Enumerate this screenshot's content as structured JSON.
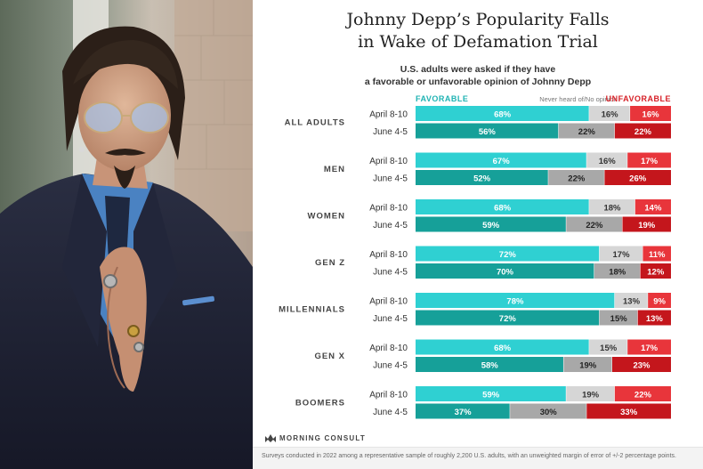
{
  "photo": {
    "alt": ""
  },
  "header": {
    "title_line1": "Johnny Depp’s Popularity Falls",
    "title_line2": "in Wake of Defamation Trial",
    "subtitle_line1": "U.S. adults were asked if they have",
    "subtitle_line2": "a favorable or unfavorable opinion of Johnny Depp"
  },
  "legend": {
    "favorable": "FAVORABLE",
    "neutral": "Never heard of/No opinion",
    "unfavorable": "UNFAVORABLE"
  },
  "colors": {
    "fav_april": "#2fd0d2",
    "fav_june": "#16a099",
    "neutral_april": "#d6d6d6",
    "neutral_june": "#a8a8a8",
    "unfav_april": "#e8353b",
    "unfav_june": "#c4161c",
    "fav_text": "#1fb3b3",
    "unfav_text": "#d62027"
  },
  "source": {
    "logo_text": "MORNING CONSULT"
  },
  "footnote": "Surveys conducted in 2022 among a representative sample of roughly 2,200 U.S. adults, with an unweighted margin of error of +/-2 percentage points.",
  "chart_data": {
    "type": "bar",
    "orientation": "horizontal",
    "stacked": "100%",
    "title": "Johnny Depp’s Popularity Falls in Wake of Defamation Trial",
    "subtitle": "U.S. adults were asked if they have a favorable or unfavorable opinion of Johnny Depp",
    "series_names": [
      "FAVORABLE",
      "Never heard of/No opinion",
      "UNFAVORABLE"
    ],
    "legend_position": "top",
    "groups": [
      {
        "name": "ALL ADULTS",
        "rows": [
          {
            "period": "April 8-10",
            "values": [
              68,
              16,
              16
            ]
          },
          {
            "period": "June 4-5",
            "values": [
              56,
              22,
              22
            ]
          }
        ]
      },
      {
        "name": "MEN",
        "rows": [
          {
            "period": "April 8-10",
            "values": [
              67,
              16,
              17
            ]
          },
          {
            "period": "June 4-5",
            "values": [
              52,
              22,
              26
            ]
          }
        ]
      },
      {
        "name": "WOMEN",
        "rows": [
          {
            "period": "April 8-10",
            "values": [
              68,
              18,
              14
            ]
          },
          {
            "period": "June 4-5",
            "values": [
              59,
              22,
              19
            ]
          }
        ]
      },
      {
        "name": "GEN Z",
        "rows": [
          {
            "period": "April 8-10",
            "values": [
              72,
              17,
              11
            ]
          },
          {
            "period": "June 4-5",
            "values": [
              70,
              18,
              12
            ]
          }
        ]
      },
      {
        "name": "MILLENNIALS",
        "rows": [
          {
            "period": "April 8-10",
            "values": [
              78,
              13,
              9
            ]
          },
          {
            "period": "June 4-5",
            "values": [
              72,
              15,
              13
            ]
          }
        ]
      },
      {
        "name": "GEN X",
        "rows": [
          {
            "period": "April 8-10",
            "values": [
              68,
              15,
              17
            ]
          },
          {
            "period": "June 4-5",
            "values": [
              58,
              19,
              23
            ]
          }
        ]
      },
      {
        "name": "BOOMERS",
        "rows": [
          {
            "period": "April 8-10",
            "values": [
              59,
              19,
              22
            ]
          },
          {
            "period": "June 4-5",
            "values": [
              37,
              30,
              33
            ]
          }
        ]
      }
    ]
  }
}
